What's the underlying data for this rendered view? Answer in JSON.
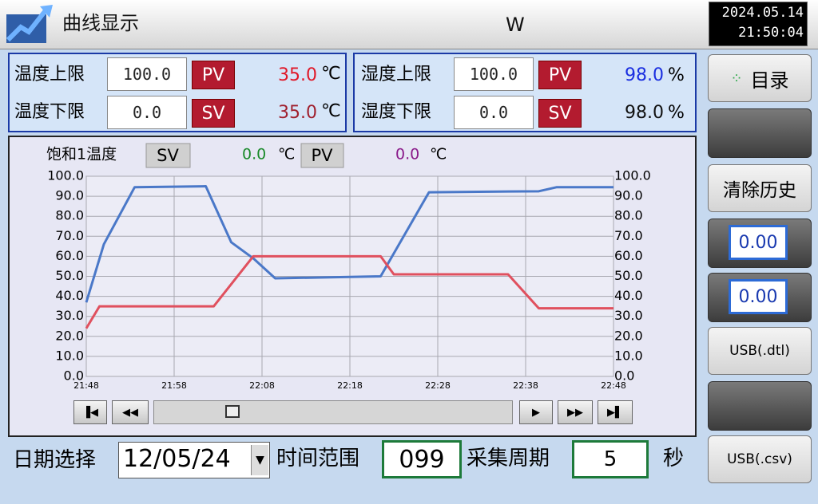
{
  "header": {
    "title": "曲线显示",
    "user": "W",
    "date": "2024.05.14",
    "time": "21:50:04"
  },
  "temperature": {
    "upper_label": "温度上限",
    "upper_value": "100.0",
    "lower_label": "温度下限",
    "lower_value": "0.0",
    "pv_label": "PV",
    "pv_value": "35.0",
    "sv_label": "SV",
    "sv_value": "35.0",
    "unit": "℃"
  },
  "humidity": {
    "upper_label": "湿度上限",
    "upper_value": "100.0",
    "lower_label": "湿度下限",
    "lower_value": "0.0",
    "pv_label": "PV",
    "pv_value": "98.0",
    "sv_label": "SV",
    "sv_value": "98.0",
    "unit": "%"
  },
  "sidebar": {
    "menu": "目录",
    "clear": "清除历史",
    "value_1": "0.00",
    "value_2": "0.00",
    "usb_dtl": "USB(.dtl)",
    "usb_csv": "USB(.csv)"
  },
  "footer": {
    "date_label": "日期选择",
    "date": "12/05/24",
    "range_label": "时间范围",
    "range": "099",
    "period_label": "采集周期",
    "period": "5",
    "unit": "秒"
  },
  "chart_data": {
    "type": "line",
    "legend": {
      "name": "饱和1温度",
      "sv_label": "SV",
      "sv_value": "0.0",
      "sv_unit": "℃",
      "pv_label": "PV",
      "pv_value": "0.0",
      "pv_unit": "℃"
    },
    "xlim": [
      0,
      60
    ],
    "xticks": [
      {
        "value": 0,
        "label": "21:48"
      },
      {
        "value": 10,
        "label": "21:58"
      },
      {
        "value": 20,
        "label": "22:08"
      },
      {
        "value": 30,
        "label": "22:18"
      },
      {
        "value": 40,
        "label": "22:28"
      },
      {
        "value": 50,
        "label": "22:38"
      },
      {
        "value": 60,
        "label": "22:48"
      }
    ],
    "ylim": [
      0,
      100
    ],
    "yticks": [
      {
        "value": 0,
        "label": "0.0"
      },
      {
        "value": 10,
        "label": "10.0"
      },
      {
        "value": 20,
        "label": "20.0"
      },
      {
        "value": 30,
        "label": "30.0"
      },
      {
        "value": 40,
        "label": "40.0"
      },
      {
        "value": 50,
        "label": "50.0"
      },
      {
        "value": 60,
        "label": "60.0"
      },
      {
        "value": 70,
        "label": "70.0"
      },
      {
        "value": 80,
        "label": "80.0"
      },
      {
        "value": 90,
        "label": "90.0"
      },
      {
        "value": 100,
        "label": "100.0"
      }
    ],
    "grid": true,
    "series": [
      {
        "color": "#4a78c8",
        "x": [
          0,
          2,
          5.5,
          13.6,
          16.5,
          19,
          21.5,
          33.5,
          39,
          51.5,
          53.5,
          60
        ],
        "values": [
          37,
          66,
          94.5,
          95,
          67,
          59,
          49,
          50,
          92,
          92.5,
          94.5,
          94.5
        ]
      },
      {
        "color": "#e0505e",
        "x": [
          0,
          1.5,
          14.5,
          19,
          33.5,
          35,
          48,
          51.5,
          60
        ],
        "values": [
          24,
          35,
          35,
          60,
          60,
          51,
          51,
          34,
          34
        ]
      }
    ]
  }
}
